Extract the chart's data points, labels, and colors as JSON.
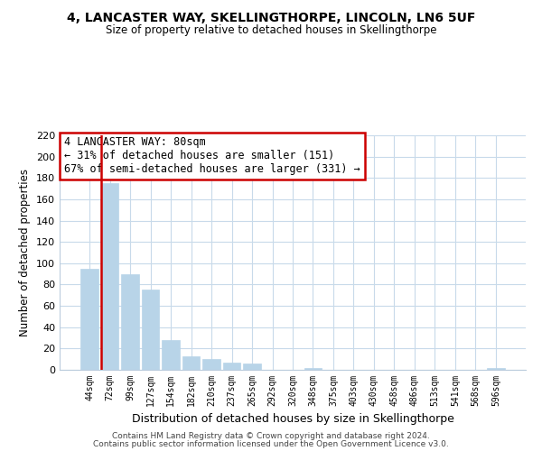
{
  "title": "4, LANCASTER WAY, SKELLINGTHORPE, LINCOLN, LN6 5UF",
  "subtitle": "Size of property relative to detached houses in Skellingthorpe",
  "xlabel": "Distribution of detached houses by size in Skellingthorpe",
  "ylabel": "Number of detached properties",
  "bar_labels": [
    "44sqm",
    "72sqm",
    "99sqm",
    "127sqm",
    "154sqm",
    "182sqm",
    "210sqm",
    "237sqm",
    "265sqm",
    "292sqm",
    "320sqm",
    "348sqm",
    "375sqm",
    "403sqm",
    "430sqm",
    "458sqm",
    "486sqm",
    "513sqm",
    "541sqm",
    "568sqm",
    "596sqm"
  ],
  "bar_heights": [
    95,
    175,
    90,
    75,
    28,
    13,
    10,
    7,
    6,
    0,
    0,
    2,
    0,
    0,
    0,
    0,
    0,
    0,
    0,
    0,
    2
  ],
  "bar_color": "#b8d4e8",
  "highlight_bar_index": 1,
  "highlight_color": "#cc0000",
  "annotation_line1": "4 LANCASTER WAY: 80sqm",
  "annotation_line2": "← 31% of detached houses are smaller (151)",
  "annotation_line3": "67% of semi-detached houses are larger (331) →",
  "ylim": [
    0,
    220
  ],
  "yticks": [
    0,
    20,
    40,
    60,
    80,
    100,
    120,
    140,
    160,
    180,
    200,
    220
  ],
  "footer_line1": "Contains HM Land Registry data © Crown copyright and database right 2024.",
  "footer_line2": "Contains public sector information licensed under the Open Government Licence v3.0.",
  "bg_color": "#ffffff",
  "grid_color": "#c8daea"
}
